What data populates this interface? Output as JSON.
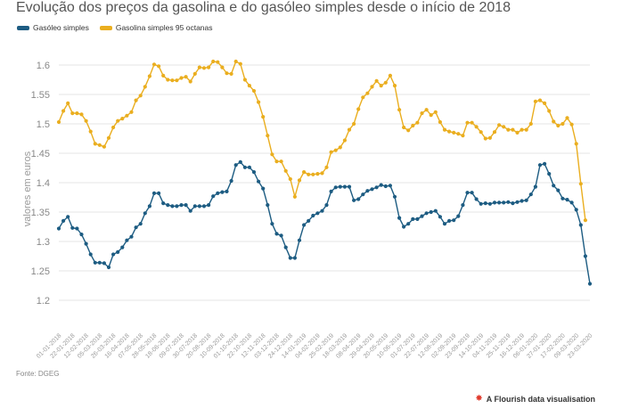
{
  "title": "Evolução dos preços da gasolina e do gasóleo simples desde o início de 2018",
  "source": "Fonte: DGEG",
  "credit": "A Flourish data visualisation",
  "chart_data": {
    "type": "line",
    "ylabel": "valores em euros",
    "ylim": [
      1.15,
      1.65
    ],
    "yticks": [
      1.2,
      1.25,
      1.3,
      1.35,
      1.4,
      1.45,
      1.5,
      1.55,
      1.6
    ],
    "grid": true,
    "legend_position": "top-left",
    "x_tick_labels": [
      "01-01-2018",
      "22-01-2018",
      "12-02-2018",
      "05-03-2018",
      "26-03-2018",
      "16-04-2018",
      "07-05-2018",
      "28-05-2018",
      "18-06-2018",
      "09-07-2018",
      "30-07-2018",
      "20-08-2018",
      "10-09-2018",
      "01-10-2018",
      "22-10-2018",
      "12-11-2018",
      "03-12-2018",
      "24-12-2018",
      "14-01-2019",
      "04-02-2019",
      "25-02-2019",
      "18-03-2019",
      "08-04-2019",
      "29-04-2019",
      "20-05-2019",
      "10-06-2019",
      "01-07-2019",
      "22-07-2019",
      "12-08-2019",
      "02-09-2019",
      "23-09-2019",
      "14-10-2019",
      "04-11-2019",
      "25-11-2019",
      "16-12-2019",
      "06-01-2020",
      "27-01-2020",
      "17-02-2020",
      "09-03-2020",
      "23-03-2020"
    ],
    "series": [
      {
        "name": "Gasóleo simples",
        "color": "#1d5c82",
        "values": [
          1.322,
          1.335,
          1.342,
          1.323,
          1.322,
          1.312,
          1.296,
          1.278,
          1.264,
          1.264,
          1.263,
          1.256,
          1.278,
          1.282,
          1.29,
          1.302,
          1.308,
          1.324,
          1.33,
          1.348,
          1.36,
          1.382,
          1.382,
          1.365,
          1.362,
          1.36,
          1.36,
          1.362,
          1.362,
          1.352,
          1.36,
          1.36,
          1.36,
          1.362,
          1.377,
          1.382,
          1.384,
          1.385,
          1.403,
          1.43,
          1.435,
          1.426,
          1.426,
          1.418,
          1.402,
          1.39,
          1.362,
          1.33,
          1.313,
          1.31,
          1.29,
          1.272,
          1.272,
          1.302,
          1.328,
          1.335,
          1.344,
          1.348,
          1.352,
          1.362,
          1.385,
          1.392,
          1.393,
          1.393,
          1.393,
          1.37,
          1.372,
          1.38,
          1.386,
          1.389,
          1.392,
          1.396,
          1.394,
          1.395,
          1.376,
          1.34,
          1.325,
          1.33,
          1.338,
          1.338,
          1.343,
          1.348,
          1.35,
          1.352,
          1.342,
          1.33,
          1.335,
          1.336,
          1.343,
          1.362,
          1.383,
          1.383,
          1.372,
          1.364,
          1.365,
          1.364,
          1.366,
          1.366,
          1.366,
          1.367,
          1.365,
          1.367,
          1.369,
          1.37,
          1.38,
          1.393,
          1.43,
          1.432,
          1.415,
          1.395,
          1.387,
          1.373,
          1.371,
          1.366,
          1.354,
          1.328,
          1.275,
          1.228
        ]
      },
      {
        "name": "Gasolina simples 95 octanas",
        "color": "#eaae1f",
        "values": [
          1.503,
          1.522,
          1.535,
          1.518,
          1.518,
          1.516,
          1.505,
          1.487,
          1.466,
          1.464,
          1.461,
          1.476,
          1.494,
          1.505,
          1.509,
          1.514,
          1.52,
          1.54,
          1.548,
          1.563,
          1.581,
          1.601,
          1.598,
          1.582,
          1.575,
          1.574,
          1.574,
          1.578,
          1.58,
          1.572,
          1.585,
          1.596,
          1.595,
          1.596,
          1.606,
          1.605,
          1.596,
          1.586,
          1.585,
          1.606,
          1.602,
          1.575,
          1.565,
          1.556,
          1.537,
          1.512,
          1.48,
          1.448,
          1.436,
          1.436,
          1.42,
          1.406,
          1.376,
          1.404,
          1.418,
          1.414,
          1.414,
          1.415,
          1.416,
          1.426,
          1.452,
          1.455,
          1.46,
          1.472,
          1.49,
          1.5,
          1.525,
          1.545,
          1.552,
          1.563,
          1.573,
          1.565,
          1.57,
          1.582,
          1.565,
          1.524,
          1.494,
          1.489,
          1.497,
          1.502,
          1.518,
          1.524,
          1.515,
          1.52,
          1.503,
          1.49,
          1.487,
          1.485,
          1.483,
          1.48,
          1.502,
          1.502,
          1.495,
          1.486,
          1.475,
          1.476,
          1.486,
          1.498,
          1.495,
          1.49,
          1.49,
          1.485,
          1.49,
          1.49,
          1.5,
          1.538,
          1.54,
          1.535,
          1.522,
          1.504,
          1.497,
          1.5,
          1.51,
          1.499,
          1.466,
          1.398,
          1.336
        ]
      }
    ]
  }
}
